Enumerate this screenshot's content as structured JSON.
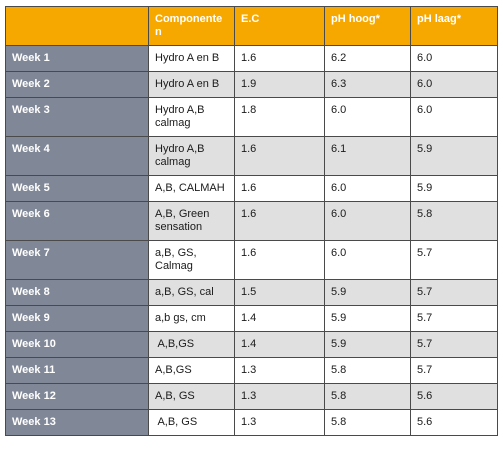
{
  "headers": [
    "",
    "Componente n",
    "E.C",
    "pH hoog*",
    "pH laag*"
  ],
  "header_lines": [
    [
      ""
    ],
    [
      "Componente",
      "n"
    ],
    [
      "E.C"
    ],
    [
      "pH hoog*"
    ],
    [
      "pH laag*"
    ]
  ],
  "rows": [
    {
      "week": "Week 1",
      "comp": [
        "Hydro A en B"
      ],
      "ec": "1.6",
      "ph_high": "6.2",
      "ph_low": "6.0"
    },
    {
      "week": "Week 2",
      "comp": [
        "Hydro A en B"
      ],
      "ec": "1.9",
      "ph_high": "6.3",
      "ph_low": "6.0"
    },
    {
      "week": "Week 3",
      "comp": [
        "Hydro A,B",
        "calmag"
      ],
      "ec": "1.8",
      "ph_high": "6.0",
      "ph_low": "6.0"
    },
    {
      "week": "Week 4",
      "comp": [
        "Hydro A,B",
        "calmag"
      ],
      "ec": "1.6",
      "ph_high": "6.1",
      "ph_low": "5.9"
    },
    {
      "week": "Week 5",
      "comp": [
        "A,B, CALMAH"
      ],
      "ec": "1.6",
      "ph_high": "6.0",
      "ph_low": "5.9"
    },
    {
      "week": "Week 6",
      "comp": [
        "A,B, Green",
        "sensation"
      ],
      "ec": "1.6",
      "ph_high": "6.0",
      "ph_low": "5.8"
    },
    {
      "week": "Week 7",
      "comp": [
        "a,B, GS,",
        "Calmag"
      ],
      "ec": "1.6",
      "ph_high": "6.0",
      "ph_low": "5.7"
    },
    {
      "week": "Week 8",
      "comp": [
        "a,B, GS, cal"
      ],
      "ec": "1.5",
      "ph_high": "5.9",
      "ph_low": "5.7"
    },
    {
      "week": "Week 9",
      "comp": [
        "a,b gs, cm"
      ],
      "ec": "1.4",
      "ph_high": "5.9",
      "ph_low": "5.7"
    },
    {
      "week": "Week 10",
      "comp": [
        " A,B,GS"
      ],
      "ec": "1.4",
      "ph_high": "5.9",
      "ph_low": "5.7"
    },
    {
      "week": "Week 11",
      "comp": [
        "A,B,GS"
      ],
      "ec": "1.3",
      "ph_high": "5.8",
      "ph_low": "5.7"
    },
    {
      "week": "Week 12",
      "comp": [
        "A,B, GS"
      ],
      "ec": "1.3",
      "ph_high": "5.8",
      "ph_low": "5.6"
    },
    {
      "week": "Week 13",
      "comp": [
        " A,B, GS"
      ],
      "ec": "1.3",
      "ph_high": "5.8",
      "ph_low": "5.6"
    }
  ],
  "colors": {
    "header": "#f7a800",
    "week_cell": "#808898",
    "stripe": "#e0e0e0"
  }
}
